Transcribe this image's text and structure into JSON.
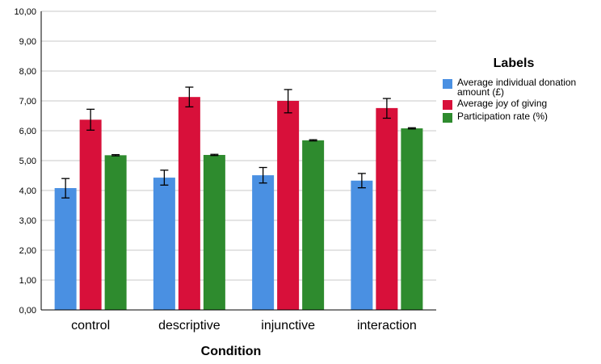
{
  "chart_data": {
    "type": "bar",
    "categories": [
      "control",
      "descriptive",
      "injunctive",
      "interaction"
    ],
    "series": [
      {
        "name": "Average individual donation amount (£)",
        "color": "#4a90e2",
        "values": [
          4.08,
          4.43,
          4.51,
          4.33
        ],
        "errors": [
          [
            3.75,
            4.4
          ],
          [
            4.18,
            4.68
          ],
          [
            4.25,
            4.77
          ],
          [
            4.09,
            4.57
          ]
        ]
      },
      {
        "name": "Average joy of giving",
        "color": "#d8103a",
        "values": [
          6.37,
          7.13,
          7.0,
          6.76
        ],
        "errors": [
          [
            6.02,
            6.72
          ],
          [
            6.8,
            7.46
          ],
          [
            6.6,
            7.38
          ],
          [
            6.42,
            7.08
          ]
        ]
      },
      {
        "name": "Participation rate (%)",
        "color": "#2e8b2e",
        "values": [
          5.18,
          5.19,
          5.68,
          6.08
        ],
        "errors": [
          [
            5.16,
            5.2
          ],
          [
            5.17,
            5.21
          ],
          [
            5.66,
            5.7
          ],
          [
            6.06,
            6.1
          ]
        ]
      }
    ],
    "xlabel": "Condition",
    "ylabel": "",
    "ylim": [
      0,
      10
    ],
    "yticks": [
      "0,00",
      "1,00",
      "2,00",
      "3,00",
      "4,00",
      "5,00",
      "6,00",
      "7,00",
      "8,00",
      "9,00",
      "10,00"
    ],
    "grid": true,
    "legend": {
      "title": "Labels",
      "position": "right"
    }
  }
}
